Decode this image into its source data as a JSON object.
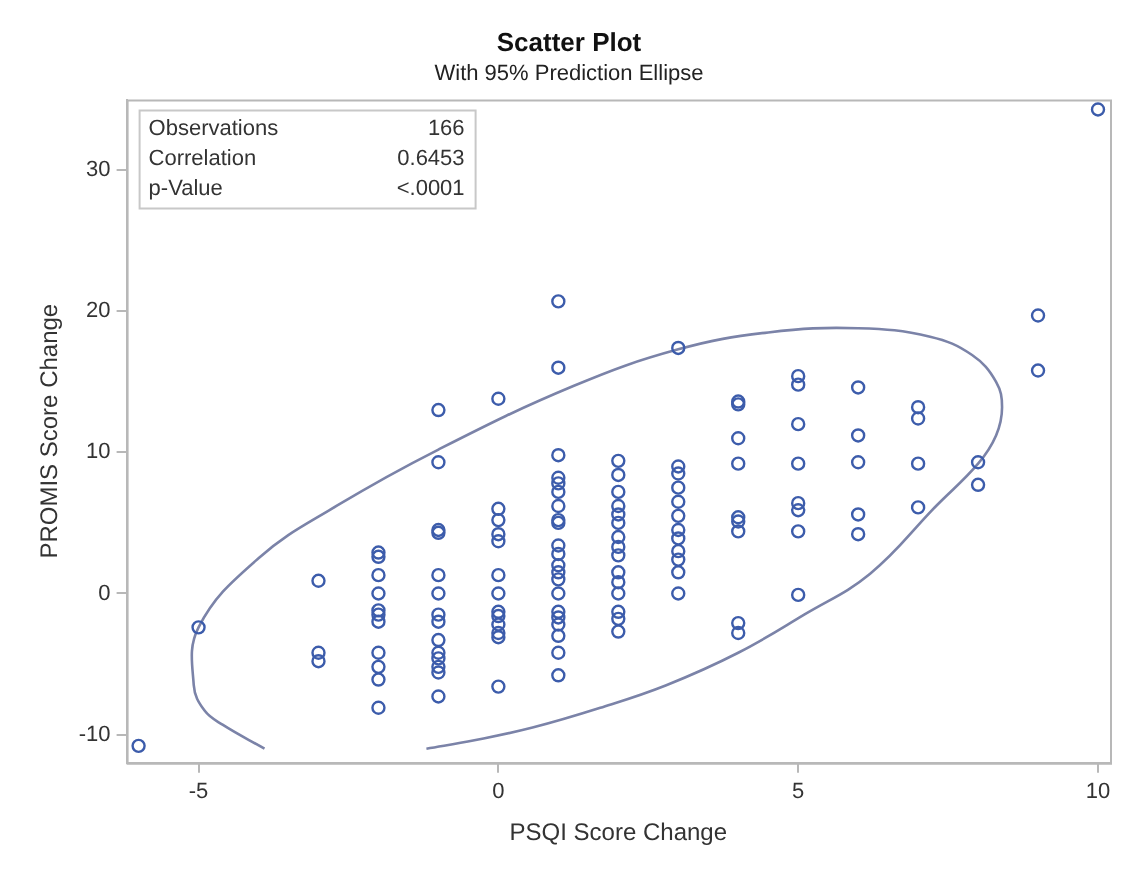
{
  "chart_data": {
    "type": "scatter",
    "title": "Scatter Plot",
    "subtitle": "With 95% Prediction Ellipse",
    "xlabel": "PSQI Score Change",
    "ylabel": "PROMIS Score Change",
    "annotations": [
      "Observations 166",
      "Correlation 0.6453",
      "p-Value <.0001"
    ],
    "xlim": [
      -6.2,
      10.2
    ],
    "ylim": [
      -12,
      35
    ],
    "xticks": [
      -5,
      0,
      5,
      10
    ],
    "yticks": [
      -10,
      0,
      10,
      20,
      30
    ],
    "grid": false,
    "legend": false,
    "series": [
      {
        "type": "scatter",
        "color": "#3c5cab",
        "marker": "circle",
        "x": [
          -6,
          -5,
          -3,
          -3,
          -3,
          -2,
          -2,
          -2,
          -2,
          -2,
          -2,
          -2,
          -2,
          -2,
          -2,
          -2,
          -1,
          -1,
          -1,
          -1,
          -1,
          -1,
          -1,
          -1,
          -1,
          -1,
          -1,
          -1,
          -1,
          -1,
          0,
          0,
          0,
          0,
          0,
          0,
          0,
          0,
          0,
          0,
          0,
          0,
          0,
          1,
          1,
          1,
          1,
          1,
          1,
          1,
          1,
          1,
          1,
          1,
          1,
          1,
          1,
          1,
          1,
          1,
          1,
          1,
          1,
          1,
          2,
          2,
          2,
          2,
          2,
          2,
          2,
          2,
          2,
          2,
          2,
          2,
          2,
          2,
          2,
          3,
          3,
          3,
          3,
          3,
          3,
          3,
          3,
          3,
          3,
          3,
          3,
          4,
          4,
          4,
          4,
          4,
          4,
          4,
          4,
          4,
          5,
          5,
          5,
          5,
          5,
          5,
          5,
          5,
          6,
          6,
          6,
          6,
          6,
          7,
          7,
          7,
          7,
          8,
          8,
          9,
          9,
          10
        ],
        "values": [
          -10.8,
          -2.4,
          0.9,
          -4.2,
          -4.8,
          2.9,
          2.6,
          1.3,
          0,
          -1.5,
          -1.2,
          -2,
          -4.2,
          -5.2,
          -6.1,
          -8.1,
          13,
          9.3,
          4.5,
          4.3,
          1.3,
          0,
          -1.5,
          -2,
          -3.3,
          -4.2,
          -4.6,
          -5.2,
          -5.6,
          -7.3,
          13.8,
          6,
          5.2,
          4.2,
          3.7,
          1.3,
          0,
          -1.3,
          -1.6,
          -2.2,
          -2.8,
          -3.1,
          -6.6,
          20.7,
          16,
          9.8,
          8.2,
          7.8,
          7.2,
          6.2,
          5.2,
          5,
          3.4,
          2.8,
          2,
          1.5,
          1,
          0,
          -1.3,
          -1.7,
          -2.2,
          -3,
          -4.2,
          -5.8,
          9.4,
          8.4,
          7.2,
          6.2,
          5.6,
          5,
          4,
          3.3,
          2.7,
          1.5,
          0.8,
          0,
          -1.3,
          -1.8,
          -2.7,
          17.4,
          9,
          8.5,
          7.5,
          6.5,
          5.5,
          4.5,
          3.9,
          3,
          2.4,
          1.5,
          0,
          13.6,
          13.4,
          11,
          9.2,
          5.4,
          5.1,
          4.4,
          -2.1,
          -2.8,
          15.4,
          14.8,
          12,
          9.2,
          6.4,
          5.9,
          4.4,
          -0.1,
          14.6,
          11.2,
          9.3,
          5.6,
          4.2,
          13.2,
          12.4,
          9.2,
          6.1,
          9.3,
          7.7,
          19.7,
          15.8,
          34.3
        ]
      },
      {
        "type": "line",
        "color": "#7b83a8",
        "marker": "none",
        "line_style": "solid",
        "x": [
          -3.9,
          -4.6,
          -4.9,
          -5.08,
          -5,
          -4,
          -2.7,
          -1,
          1.25,
          3,
          4.5,
          6,
          7.2,
          7.9,
          8.3,
          8.4,
          8.3,
          8,
          7.3,
          6.2,
          5.1,
          4,
          2.8,
          1.7,
          0.57,
          -0.4,
          -1.2
        ],
        "values": [
          -11,
          -9.3,
          -8.3,
          -6.5,
          -2.4,
          2.5,
          6.2,
          10.2,
          14.7,
          17.3,
          18.5,
          18.8,
          18.2,
          16.9,
          15,
          13.2,
          11.2,
          9.2,
          6.2,
          1.4,
          -1.5,
          -4.2,
          -6.5,
          -8.1,
          -9.5,
          -10.4,
          -11
        ]
      }
    ]
  }
}
